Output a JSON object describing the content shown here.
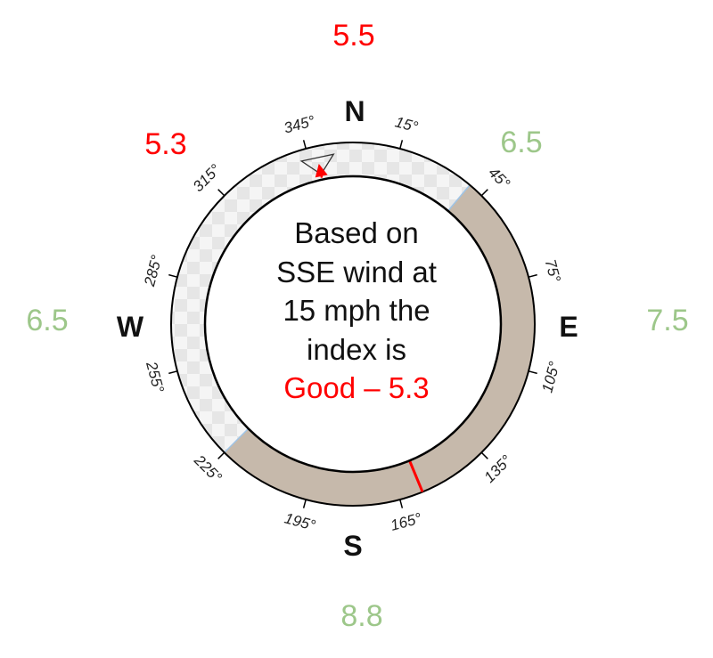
{
  "colors": {
    "good": "#ff0000",
    "other": "#9dc78a",
    "shaded_sector": "#c6b9ab",
    "checker_light": "#f5f5f5",
    "checker_dark": "#e6e6e6",
    "pointer": "#ff0000",
    "sector_divider": "#9fc4e6"
  },
  "direction_values": {
    "north": "5.5",
    "northwest": "5.3",
    "northeast": "6.5",
    "west": "6.5",
    "east": "7.5",
    "south": "8.8"
  },
  "value_status": {
    "north": "good",
    "northwest": "good",
    "northeast": "other",
    "west": "other",
    "east": "other",
    "south": "other"
  },
  "cardinals": {
    "north": "N",
    "east": "E",
    "south": "S",
    "west": "W"
  },
  "degree_ticks": [
    "15°",
    "45°",
    "75°",
    "105°",
    "135°",
    "165°",
    "195°",
    "225°",
    "255°",
    "285°",
    "315°",
    "345°"
  ],
  "compass": {
    "shaded_sector_deg": [
      40,
      225
    ],
    "pointer_heading_deg": 348,
    "wind_marker_deg": 157.5
  },
  "center": {
    "line1": "Based on",
    "line2": "SSE wind at",
    "line3": "15 mph the",
    "line4": "index is",
    "line5": "Good – 5.3"
  }
}
